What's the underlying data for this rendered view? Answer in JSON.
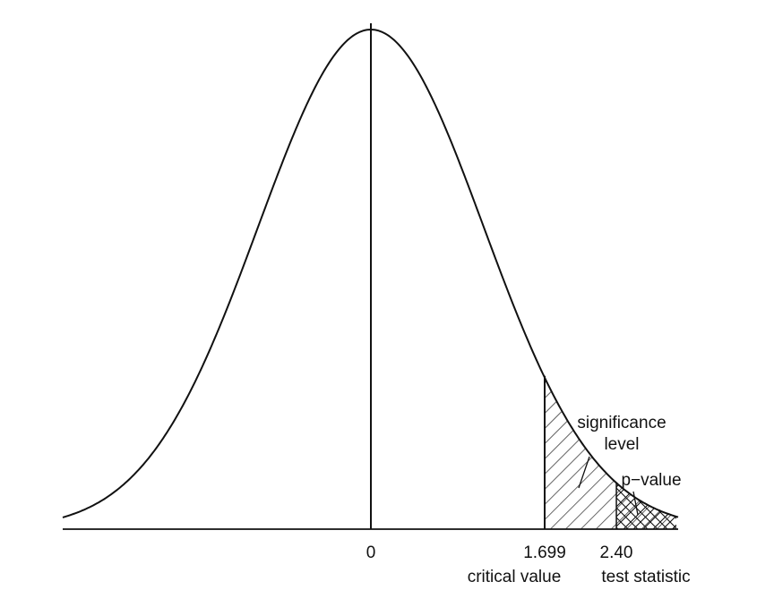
{
  "labels": {
    "center_tick": "0",
    "critical_tick": "1.699",
    "critical_caption": "critical value",
    "statistic_tick": "2.40",
    "statistic_caption": "test statistic",
    "significance_line1": "significance",
    "significance_line2": "level",
    "pvalue": "p−value"
  },
  "distribution": {
    "center": 0,
    "critical_value": 1.699,
    "test_statistic": 2.4
  },
  "colors": {
    "ink": "#111111",
    "background": "#ffffff"
  }
}
